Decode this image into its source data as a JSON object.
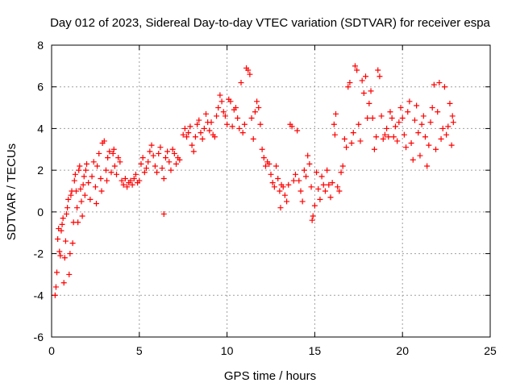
{
  "chart_data": {
    "type": "scatter",
    "title": "Day 012 of 2023, Sidereal Day-to-day VTEC variation (SDTVAR) for receiver espa",
    "xlabel": "GPS time / hours",
    "ylabel": "SDTVAR / TECUs",
    "xlim": [
      0,
      25
    ],
    "ylim": [
      -6,
      8
    ],
    "xticks": [
      0,
      5,
      10,
      15,
      20,
      25
    ],
    "yticks": [
      -6,
      -4,
      -2,
      0,
      2,
      4,
      6,
      8
    ],
    "grid": true,
    "marker": "+",
    "marker_color": "#ff0000",
    "series": [
      {
        "name": "SDTVAR",
        "points": [
          [
            0.2,
            -4.0
          ],
          [
            0.25,
            -3.6
          ],
          [
            0.3,
            -2.9
          ],
          [
            0.35,
            -1.3
          ],
          [
            0.4,
            -0.8
          ],
          [
            0.45,
            -1.9
          ],
          [
            0.5,
            -2.1
          ],
          [
            0.55,
            -0.9
          ],
          [
            0.6,
            -0.6
          ],
          [
            0.65,
            -0.3
          ],
          [
            0.7,
            -3.4
          ],
          [
            0.75,
            -2.2
          ],
          [
            0.8,
            -1.4
          ],
          [
            0.85,
            -0.1
          ],
          [
            0.9,
            0.2
          ],
          [
            0.95,
            0.6
          ],
          [
            1.0,
            -3.0
          ],
          [
            1.05,
            -2.0
          ],
          [
            1.1,
            0.8
          ],
          [
            1.15,
            1.0
          ],
          [
            1.2,
            -1.5
          ],
          [
            1.25,
            -0.5
          ],
          [
            1.3,
            1.5
          ],
          [
            1.35,
            1.8
          ],
          [
            1.4,
            1.0
          ],
          [
            1.45,
            0.2
          ],
          [
            1.5,
            -0.5
          ],
          [
            1.55,
            2.0
          ],
          [
            1.6,
            2.2
          ],
          [
            1.65,
            1.1
          ],
          [
            1.7,
            0.5
          ],
          [
            1.75,
            -0.2
          ],
          [
            1.8,
            1.3
          ],
          [
            1.85,
            1.7
          ],
          [
            1.9,
            0.8
          ],
          [
            1.95,
            2.0
          ],
          [
            2.0,
            2.3
          ],
          [
            2.1,
            1.4
          ],
          [
            2.2,
            0.6
          ],
          [
            2.3,
            1.7
          ],
          [
            2.4,
            2.4
          ],
          [
            2.5,
            1.2
          ],
          [
            2.55,
            0.4
          ],
          [
            2.6,
            2.2
          ],
          [
            2.7,
            2.8
          ],
          [
            2.8,
            1.6
          ],
          [
            2.85,
            1.0
          ],
          [
            2.9,
            3.3
          ],
          [
            3.0,
            3.4
          ],
          [
            3.1,
            2.0
          ],
          [
            3.15,
            1.5
          ],
          [
            3.2,
            2.6
          ],
          [
            3.3,
            2.9
          ],
          [
            3.4,
            1.9
          ],
          [
            3.5,
            2.8
          ],
          [
            3.55,
            3.0
          ],
          [
            3.6,
            2.2
          ],
          [
            3.7,
            1.8
          ],
          [
            3.8,
            2.6
          ],
          [
            3.9,
            2.4
          ],
          [
            4.0,
            1.5
          ],
          [
            4.1,
            1.3
          ],
          [
            4.2,
            1.6
          ],
          [
            4.3,
            1.2
          ],
          [
            4.4,
            1.4
          ],
          [
            4.5,
            1.5
          ],
          [
            4.6,
            1.3
          ],
          [
            4.7,
            1.6
          ],
          [
            4.8,
            1.8
          ],
          [
            4.9,
            1.4
          ],
          [
            5.0,
            1.5
          ],
          [
            5.1,
            2.3
          ],
          [
            5.2,
            2.6
          ],
          [
            5.3,
            1.9
          ],
          [
            5.4,
            2.1
          ],
          [
            5.5,
            2.4
          ],
          [
            5.6,
            2.9
          ],
          [
            5.7,
            3.2
          ],
          [
            5.8,
            2.7
          ],
          [
            5.9,
            2.2
          ],
          [
            6.0,
            1.9
          ],
          [
            6.1,
            2.8
          ],
          [
            6.2,
            3.1
          ],
          [
            6.3,
            2.1
          ],
          [
            6.4,
            1.6
          ],
          [
            6.5,
            2.6
          ],
          [
            6.6,
            2.9
          ],
          [
            6.7,
            2.4
          ],
          [
            6.8,
            2.0
          ],
          [
            6.9,
            3.0
          ],
          [
            7.0,
            2.8
          ],
          [
            7.1,
            2.3
          ],
          [
            7.2,
            2.6
          ],
          [
            7.3,
            2.5
          ],
          [
            6.4,
            -0.1
          ],
          [
            7.5,
            3.7
          ],
          [
            7.6,
            4.0
          ],
          [
            7.7,
            3.6
          ],
          [
            7.8,
            3.8
          ],
          [
            7.9,
            4.1
          ],
          [
            8.0,
            3.2
          ],
          [
            8.1,
            2.9
          ],
          [
            8.2,
            3.6
          ],
          [
            8.3,
            4.2
          ],
          [
            8.4,
            4.4
          ],
          [
            8.5,
            3.8
          ],
          [
            8.6,
            3.5
          ],
          [
            8.7,
            4.0
          ],
          [
            8.8,
            4.7
          ],
          [
            8.9,
            4.3
          ],
          [
            9.0,
            3.9
          ],
          [
            9.1,
            4.3
          ],
          [
            9.2,
            3.7
          ],
          [
            9.3,
            3.6
          ],
          [
            9.4,
            4.6
          ],
          [
            9.5,
            5.0
          ],
          [
            9.6,
            5.6
          ],
          [
            9.7,
            5.3
          ],
          [
            9.8,
            4.8
          ],
          [
            9.9,
            4.6
          ],
          [
            10.0,
            4.2
          ],
          [
            10.1,
            5.4
          ],
          [
            10.2,
            5.3
          ],
          [
            10.3,
            4.1
          ],
          [
            10.4,
            4.9
          ],
          [
            10.5,
            5.0
          ],
          [
            10.6,
            4.5
          ],
          [
            10.7,
            4.0
          ],
          [
            10.8,
            6.2
          ],
          [
            10.9,
            3.8
          ],
          [
            11.0,
            4.2
          ],
          [
            11.1,
            6.9
          ],
          [
            11.2,
            6.8
          ],
          [
            11.3,
            6.6
          ],
          [
            11.4,
            4.5
          ],
          [
            11.5,
            3.5
          ],
          [
            11.6,
            4.8
          ],
          [
            11.7,
            5.3
          ],
          [
            11.8,
            5.0
          ],
          [
            11.9,
            4.2
          ],
          [
            12.0,
            3.0
          ],
          [
            12.1,
            2.6
          ],
          [
            12.2,
            2.2
          ],
          [
            12.3,
            2.4
          ],
          [
            12.4,
            2.3
          ],
          [
            12.5,
            1.8
          ],
          [
            12.6,
            1.4
          ],
          [
            12.7,
            1.2
          ],
          [
            12.8,
            2.2
          ],
          [
            12.9,
            1.6
          ],
          [
            13.0,
            1.0
          ],
          [
            13.05,
            0.2
          ],
          [
            13.1,
            1.3
          ],
          [
            13.2,
            1.2
          ],
          [
            13.3,
            0.8
          ],
          [
            13.4,
            0.5
          ],
          [
            13.5,
            1.3
          ],
          [
            13.6,
            4.2
          ],
          [
            13.7,
            4.1
          ],
          [
            13.8,
            1.5
          ],
          [
            13.9,
            1.8
          ],
          [
            14.0,
            3.9
          ],
          [
            14.1,
            1.5
          ],
          [
            14.2,
            1.0
          ],
          [
            14.3,
            0.5
          ],
          [
            14.4,
            2.0
          ],
          [
            14.5,
            1.7
          ],
          [
            14.6,
            2.7
          ],
          [
            14.7,
            2.3
          ],
          [
            14.8,
            1.2
          ],
          [
            14.85,
            -0.4
          ],
          [
            14.9,
            -0.2
          ],
          [
            15.0,
            0.3
          ],
          [
            15.1,
            1.9
          ],
          [
            15.2,
            1.1
          ],
          [
            15.3,
            0.6
          ],
          [
            15.4,
            1.7
          ],
          [
            15.5,
            1.3
          ],
          [
            15.6,
            1.0
          ],
          [
            15.7,
            2.0
          ],
          [
            15.8,
            1.3
          ],
          [
            15.9,
            0.7
          ],
          [
            16.0,
            1.4
          ],
          [
            16.1,
            4.2
          ],
          [
            16.15,
            3.7
          ],
          [
            16.2,
            4.7
          ],
          [
            16.3,
            1.2
          ],
          [
            16.4,
            1.0
          ],
          [
            16.5,
            1.9
          ],
          [
            16.6,
            2.2
          ],
          [
            16.7,
            3.5
          ],
          [
            16.8,
            3.1
          ],
          [
            16.9,
            6.0
          ],
          [
            17.0,
            6.2
          ],
          [
            17.1,
            3.3
          ],
          [
            17.2,
            3.8
          ],
          [
            17.3,
            7.0
          ],
          [
            17.4,
            6.8
          ],
          [
            17.5,
            4.2
          ],
          [
            17.6,
            3.4
          ],
          [
            17.7,
            6.3
          ],
          [
            17.8,
            5.7
          ],
          [
            17.9,
            6.5
          ],
          [
            18.0,
            4.5
          ],
          [
            18.1,
            5.2
          ],
          [
            18.2,
            5.8
          ],
          [
            18.3,
            4.5
          ],
          [
            18.4,
            3.0
          ],
          [
            18.5,
            3.6
          ],
          [
            18.6,
            6.8
          ],
          [
            18.7,
            6.5
          ],
          [
            18.8,
            4.6
          ],
          [
            18.9,
            3.5
          ],
          [
            19.0,
            3.7
          ],
          [
            19.1,
            4.0
          ],
          [
            19.2,
            3.6
          ],
          [
            19.3,
            4.8
          ],
          [
            19.4,
            4.5
          ],
          [
            19.5,
            3.6
          ],
          [
            19.6,
            4.1
          ],
          [
            19.7,
            3.4
          ],
          [
            19.8,
            4.3
          ],
          [
            19.9,
            5.0
          ],
          [
            20.0,
            4.5
          ],
          [
            20.1,
            3.7
          ],
          [
            20.2,
            3.1
          ],
          [
            20.3,
            4.8
          ],
          [
            20.4,
            5.3
          ],
          [
            20.5,
            3.3
          ],
          [
            20.6,
            2.5
          ],
          [
            20.7,
            4.4
          ],
          [
            20.8,
            5.1
          ],
          [
            20.9,
            3.8
          ],
          [
            21.0,
            2.7
          ],
          [
            21.1,
            4.2
          ],
          [
            21.2,
            4.6
          ],
          [
            21.3,
            3.6
          ],
          [
            21.4,
            2.2
          ],
          [
            21.5,
            3.2
          ],
          [
            21.6,
            4.3
          ],
          [
            21.7,
            5.0
          ],
          [
            21.8,
            6.1
          ],
          [
            21.9,
            3.0
          ],
          [
            22.0,
            4.8
          ],
          [
            22.1,
            6.2
          ],
          [
            22.2,
            3.5
          ],
          [
            22.3,
            4.0
          ],
          [
            22.4,
            6.0
          ],
          [
            22.5,
            3.7
          ],
          [
            22.6,
            4.1
          ],
          [
            22.7,
            5.2
          ],
          [
            22.8,
            3.2
          ],
          [
            22.85,
            4.6
          ],
          [
            22.9,
            4.3
          ]
        ]
      }
    ]
  }
}
